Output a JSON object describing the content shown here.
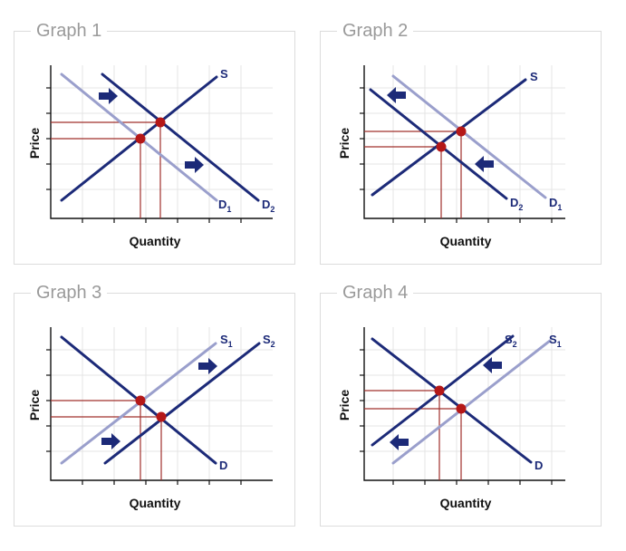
{
  "graphs": [
    {
      "title": "Graph 1",
      "xlabel": "Quantity",
      "ylabel": "Price",
      "curves": [
        {
          "name": "S",
          "sub": "",
          "style": "dark"
        },
        {
          "name": "D",
          "sub": "1",
          "style": "light"
        },
        {
          "name": "D",
          "sub": "2",
          "style": "dark"
        }
      ],
      "shift": "Demand increases: D1 shifts right to D2",
      "arrows": [
        "right",
        "right"
      ]
    },
    {
      "title": "Graph 2",
      "xlabel": "Quantity",
      "ylabel": "Price",
      "curves": [
        {
          "name": "S",
          "sub": "",
          "style": "dark"
        },
        {
          "name": "D",
          "sub": "2",
          "style": "dark"
        },
        {
          "name": "D",
          "sub": "1",
          "style": "light"
        }
      ],
      "shift": "Demand decreases: D1 shifts left to D2",
      "arrows": [
        "left",
        "left"
      ]
    },
    {
      "title": "Graph 3",
      "xlabel": "Quantity",
      "ylabel": "Price",
      "curves": [
        {
          "name": "S",
          "sub": "1",
          "style": "light"
        },
        {
          "name": "S",
          "sub": "2",
          "style": "dark"
        },
        {
          "name": "D",
          "sub": "",
          "style": "dark"
        }
      ],
      "shift": "Supply increases: S1 shifts right to S2",
      "arrows": [
        "right",
        "right"
      ]
    },
    {
      "title": "Graph 4",
      "xlabel": "Quantity",
      "ylabel": "Price",
      "curves": [
        {
          "name": "S",
          "sub": "2",
          "style": "dark"
        },
        {
          "name": "S",
          "sub": "1",
          "style": "light"
        },
        {
          "name": "D",
          "sub": "",
          "style": "dark"
        }
      ],
      "shift": "Supply decreases: S1 shifts left to S2",
      "arrows": [
        "left",
        "left"
      ]
    }
  ],
  "colors": {
    "dark_curve": "#1c2a78",
    "light_curve": "#9a9fcc",
    "equilibrium_point": "#b51818",
    "reference_line": "#a0302c",
    "panel_title": "#9a9a9a"
  }
}
